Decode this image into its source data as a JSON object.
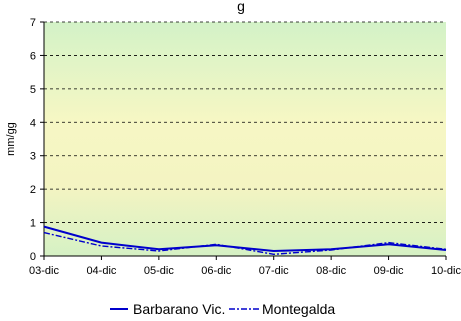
{
  "chart_data": {
    "type": "line",
    "title": "g",
    "ylabel": "mm/gg",
    "xlabel": "",
    "categories": [
      "03-dic",
      "04-dic",
      "05-dic",
      "06-dic",
      "07-dic",
      "08-dic",
      "09-dic",
      "10-dic"
    ],
    "ylim": [
      0,
      7
    ],
    "yticks": [
      "0",
      "1",
      "2",
      "3",
      "4",
      "5",
      "6",
      "7"
    ],
    "grid": "horizontal dashed",
    "background": "gradient green-yellow-green",
    "legend_position": "bottom",
    "series": [
      {
        "name": "Barbarano Vic.",
        "values": [
          0.88,
          0.4,
          0.2,
          0.32,
          0.15,
          0.2,
          0.35,
          0.18
        ],
        "color": "#0000cc",
        "style": "solid"
      },
      {
        "name": "Montegalda",
        "values": [
          0.7,
          0.3,
          0.15,
          0.35,
          0.05,
          0.18,
          0.4,
          0.2
        ],
        "color": "#0000cc",
        "style": "dash-dot"
      }
    ]
  }
}
